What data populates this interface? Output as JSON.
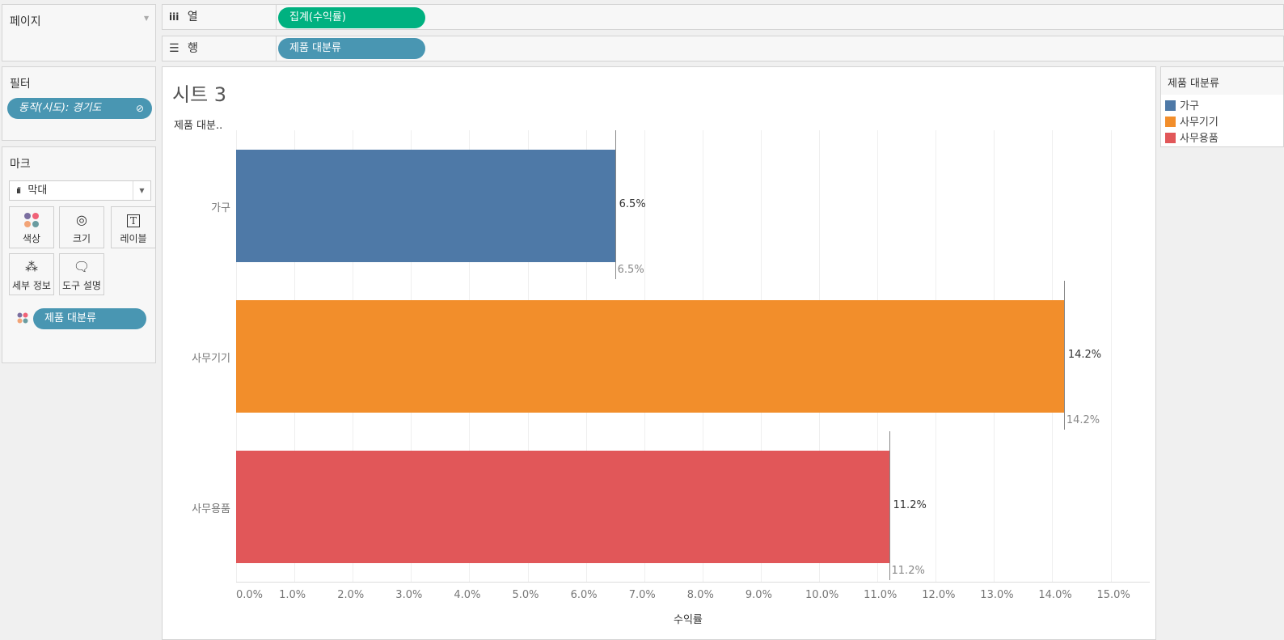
{
  "pages": {
    "title": "페이지"
  },
  "filters": {
    "title": "필터",
    "pill": "동작(시도): 경기도"
  },
  "marks": {
    "title": "마크",
    "type": "막대",
    "cards": [
      "색상",
      "크기",
      "레이블",
      "세부 정보",
      "도구 설명"
    ],
    "color_pill": "제품 대분류"
  },
  "shelves": {
    "columns_label": "열",
    "columns_pill": "집계(수익률)",
    "rows_label": "행",
    "rows_pill": "제품 대분류"
  },
  "sheet": {
    "title": "시트 3",
    "row_header": "제품 대분.."
  },
  "legend": {
    "title": "제품 대분류",
    "items": [
      "가구",
      "사무기기",
      "사무용품"
    ]
  },
  "colors": {
    "green": "#00b180",
    "teal": "#4996b2"
  },
  "chart_data": {
    "type": "bar",
    "orientation": "horizontal",
    "categories": [
      "가구",
      "사무기기",
      "사무용품"
    ],
    "values": [
      6.5,
      14.2,
      11.2
    ],
    "value_labels": [
      "6.5%",
      "14.2%",
      "11.2%"
    ],
    "reference_labels": [
      "6.5%",
      "14.2%",
      "11.2%"
    ],
    "colors": [
      "#4e79a7",
      "#f28e2b",
      "#e15759"
    ],
    "xlabel": "수익률",
    "ylabel": "제품 대분..",
    "xlim": [
      0,
      15.7
    ],
    "ticks": [
      "0.0%",
      "1.0%",
      "2.0%",
      "3.0%",
      "4.0%",
      "5.0%",
      "6.0%",
      "7.0%",
      "8.0%",
      "9.0%",
      "10.0%",
      "11.0%",
      "12.0%",
      "13.0%",
      "14.0%",
      "15.0%"
    ]
  }
}
